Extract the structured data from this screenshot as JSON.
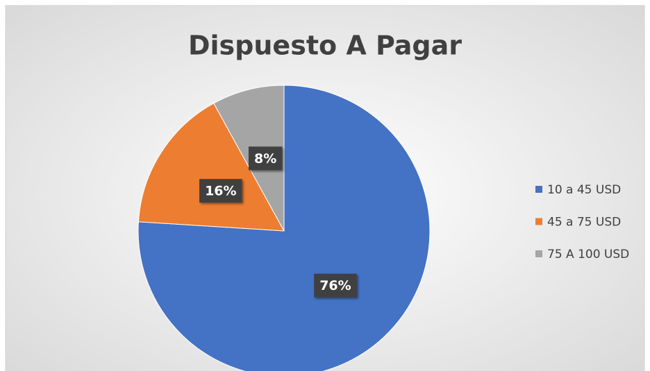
{
  "chart_data": {
    "type": "pie",
    "title": "Dispuesto A Pagar",
    "categories": [
      "10 a 45 USD",
      "45 a 75 USD",
      "75 A 100 USD"
    ],
    "values": [
      76,
      16,
      8
    ],
    "value_labels": [
      "76%",
      "16%",
      "8%"
    ],
    "colors": [
      "#4472c4",
      "#ed7d31",
      "#a5a5a5"
    ],
    "legend": "right"
  }
}
